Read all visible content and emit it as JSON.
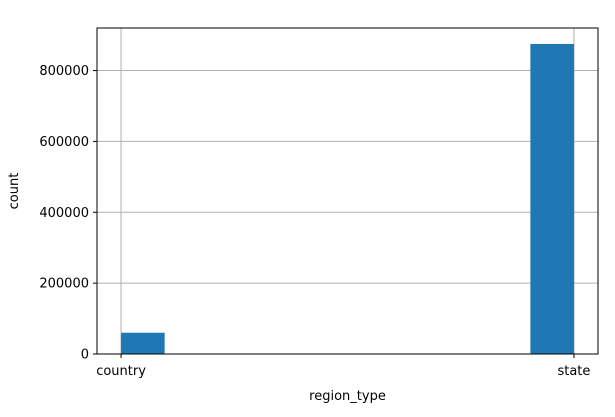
{
  "chart_data": {
    "type": "bar",
    "title": "",
    "xlabel": "region_type",
    "ylabel": "count",
    "categories": [
      "country",
      "state"
    ],
    "values": [
      60000,
      875000
    ],
    "x_ticks": [
      "country",
      "state"
    ],
    "y_ticks": [
      0,
      200000,
      400000,
      600000,
      800000
    ],
    "y_tick_labels": [
      "0",
      "200000",
      "400000",
      "600000",
      "800000"
    ],
    "ylim": [
      0,
      920000
    ],
    "grid": true,
    "legend": "none",
    "bar_color": "#1f77b4",
    "grid_color": "#b0b0b0"
  }
}
